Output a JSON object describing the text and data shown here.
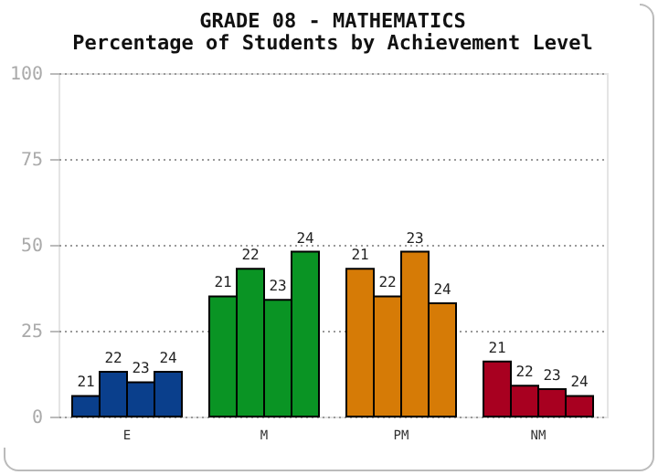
{
  "chart_data": {
    "type": "bar",
    "title": "GRADE 08 - MATHEMATICS",
    "subtitle": "Percentage of Students by Achievement Level",
    "categories": [
      "E",
      "M",
      "PM",
      "NM"
    ],
    "series": [
      {
        "name": "21",
        "colors": [
          "#0a3f8c",
          "#0a9424",
          "#d67b06",
          "#a80020"
        ],
        "values": [
          6,
          35,
          43,
          16
        ]
      },
      {
        "name": "22",
        "colors": [
          "#0a3f8c",
          "#0a9424",
          "#d67b06",
          "#a80020"
        ],
        "values": [
          13,
          43,
          35,
          9
        ]
      },
      {
        "name": "23",
        "colors": [
          "#0a3f8c",
          "#0a9424",
          "#d67b06",
          "#a80020"
        ],
        "values": [
          10,
          34,
          48,
          8
        ]
      },
      {
        "name": "24",
        "colors": [
          "#0a3f8c",
          "#0a9424",
          "#d67b06",
          "#a80020"
        ],
        "values": [
          13,
          48,
          33,
          6
        ]
      }
    ],
    "ylim": [
      0,
      100
    ],
    "yticks": [
      0,
      25,
      50,
      75,
      100
    ],
    "grid": "y"
  }
}
